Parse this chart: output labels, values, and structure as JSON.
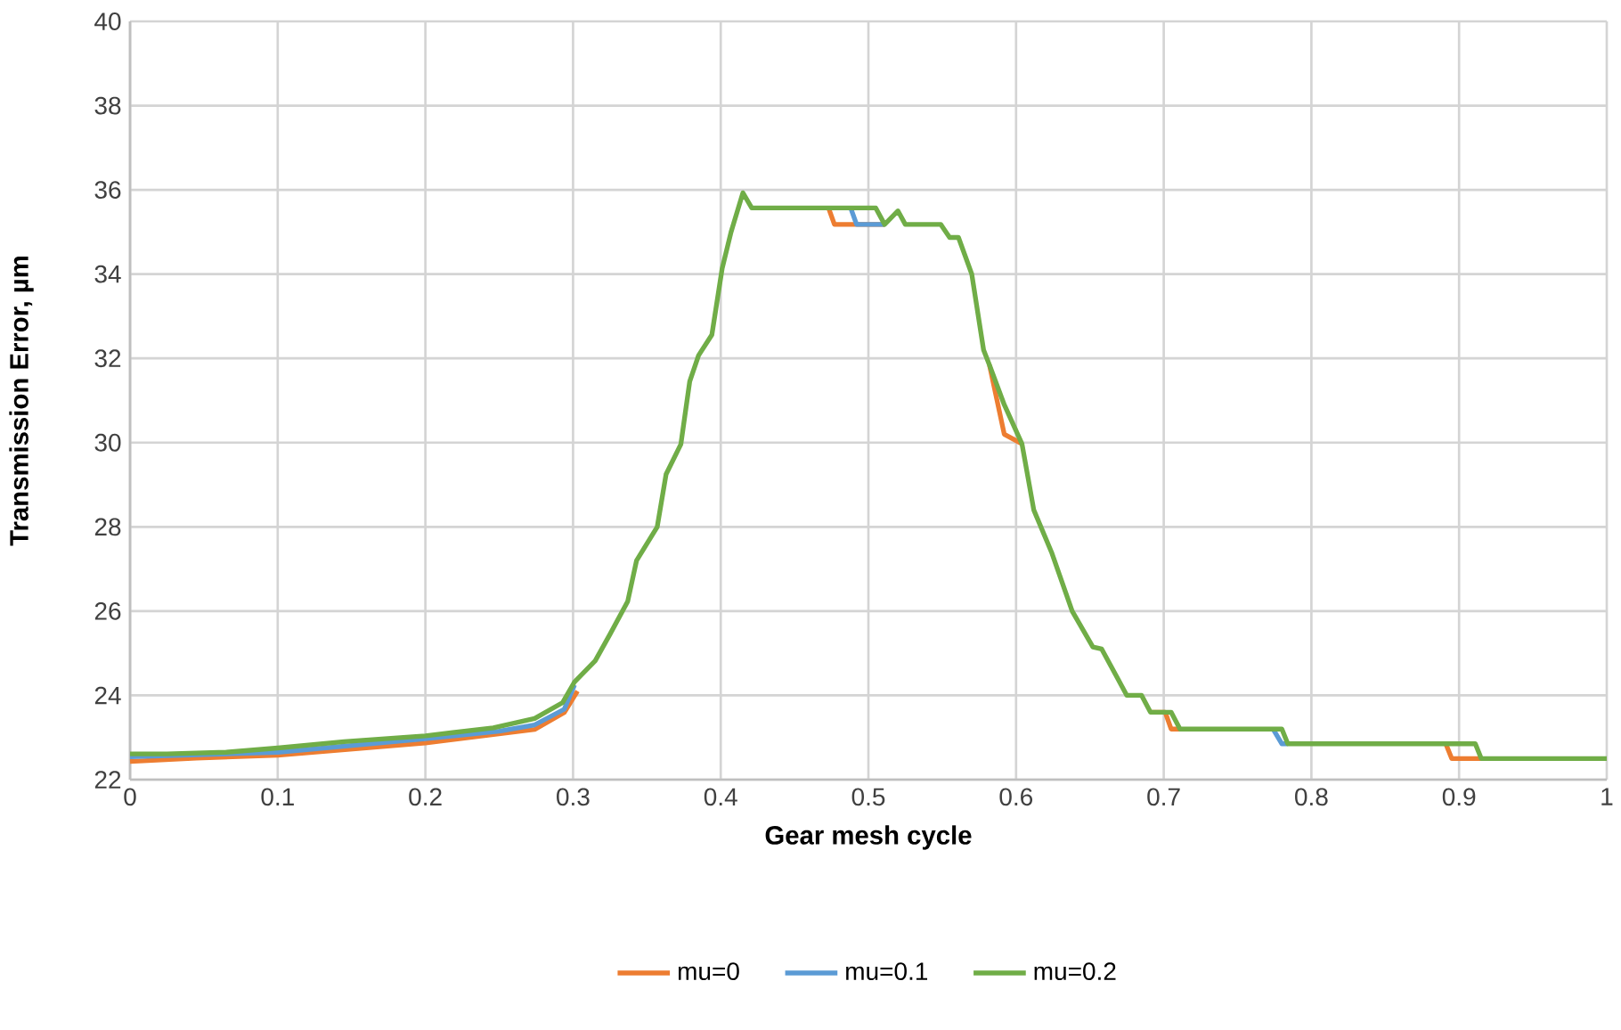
{
  "chart_data": {
    "type": "line",
    "xlabel": "Gear mesh cycle",
    "ylabel": "Transmission Error, µm",
    "xlim": [
      0,
      1
    ],
    "ylim": [
      22,
      40
    ],
    "xticks": [
      0,
      0.1,
      0.2,
      0.3,
      0.4,
      0.5,
      0.6,
      0.7,
      0.8,
      0.9,
      1
    ],
    "yticks": [
      22,
      24,
      26,
      28,
      30,
      32,
      34,
      36,
      38,
      40
    ],
    "grid": true,
    "legend": "bottom",
    "line_style": "solid",
    "series": [
      {
        "name": "mu=0",
        "color": "#ed7d31",
        "x": [
          0,
          0.045,
          0.1,
          0.2,
          0.274,
          0.294,
          0.303,
          0.315,
          0.473,
          0.477,
          0.511,
          0.52,
          0.582,
          0.592,
          0.604,
          0.612,
          0.691,
          0.701,
          0.705,
          0.711,
          0.78,
          0.891,
          0.895,
          0.915
        ],
        "values": [
          22.43,
          22.51,
          22.58,
          22.87,
          23.19,
          23.59,
          24.1,
          null,
          35.57,
          35.18,
          35.18,
          null,
          31.84,
          30.2,
          29.97,
          null,
          23.6,
          23.6,
          23.2,
          23.2,
          null,
          22.85,
          22.5,
          22.5
        ]
      },
      {
        "name": "mu=0.1",
        "color": "#5b9bd5",
        "x": [
          0,
          0.1,
          0.2,
          0.25,
          0.274,
          0.294,
          0.301,
          0.315,
          0.488,
          0.492,
          0.511,
          0.52,
          0.774,
          0.78,
          0.784
        ],
        "values": [
          22.54,
          22.65,
          22.97,
          23.15,
          23.3,
          23.67,
          24.25,
          null,
          35.57,
          35.18,
          35.18,
          null,
          23.2,
          22.85,
          22.85
        ]
      },
      {
        "name": "mu=0.2",
        "color": "#70ad47",
        "x": [
          0,
          0.025,
          0.065,
          0.1,
          0.145,
          0.2,
          0.246,
          0.274,
          0.293,
          0.301,
          0.315,
          0.325,
          0.337,
          0.343,
          0.357,
          0.363,
          0.373,
          0.379,
          0.385,
          0.394,
          0.401,
          0.407,
          0.415,
          0.421,
          0.505,
          0.511,
          0.52,
          0.525,
          0.549,
          0.555,
          0.561,
          0.57,
          0.578,
          0.582,
          0.592,
          0.604,
          0.612,
          0.624,
          0.638,
          0.652,
          0.658,
          0.675,
          0.685,
          0.691,
          0.705,
          0.711,
          0.78,
          0.784,
          0.911,
          0.915,
          1
        ],
        "values": [
          22.61,
          22.61,
          22.65,
          22.75,
          22.9,
          23.04,
          23.23,
          23.45,
          23.83,
          24.32,
          24.82,
          25.45,
          26.23,
          27.2,
          28.0,
          29.25,
          29.96,
          31.45,
          32.07,
          32.56,
          34.14,
          35.0,
          35.93,
          35.57,
          35.57,
          35.18,
          35.5,
          35.18,
          35.18,
          34.87,
          34.87,
          34.0,
          32.2,
          31.84,
          30.9,
          29.97,
          28.4,
          27.4,
          26.0,
          25.15,
          25.1,
          24.0,
          24.0,
          23.6,
          23.6,
          23.2,
          23.2,
          22.85,
          22.85,
          22.5,
          22.5
        ]
      }
    ]
  }
}
